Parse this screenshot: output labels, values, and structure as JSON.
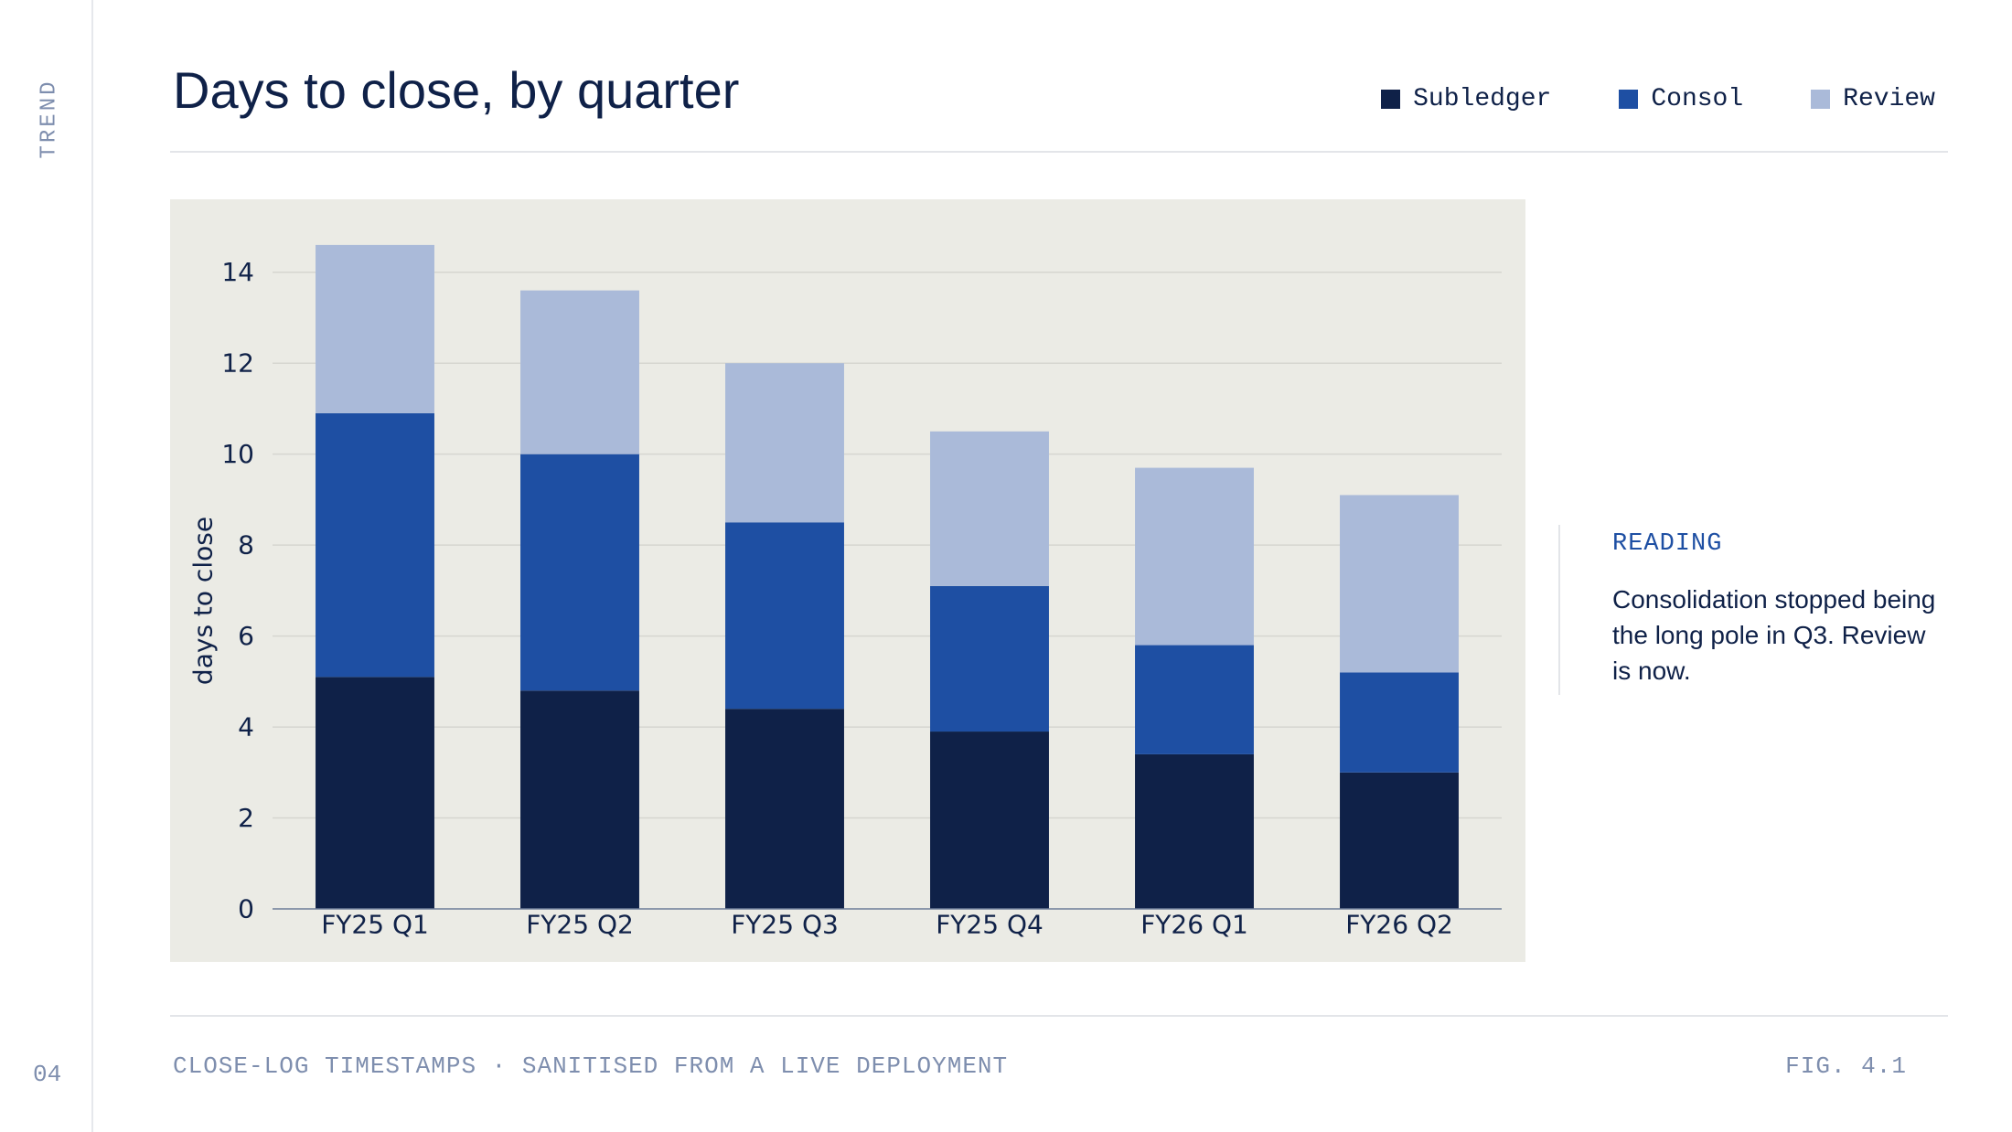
{
  "rail": {
    "section_label": "TREND",
    "page_number": "04"
  },
  "header": {
    "title": "Days to close, by quarter"
  },
  "legend": [
    {
      "label": "Subledger",
      "color": "#0f2148"
    },
    {
      "label": "Consol",
      "color": "#1e4fa3"
    },
    {
      "label": "Review",
      "color": "#aabad9"
    }
  ],
  "side_note": {
    "label": "READING",
    "text": "Consolidation stopped being the long pole in Q3. Review is now."
  },
  "footer": {
    "source": "CLOSE-LOG TIMESTAMPS · SANITISED FROM A LIVE DEPLOYMENT",
    "figure": "FIG. 4.1"
  },
  "chart_data": {
    "type": "bar",
    "stacked": true,
    "title": "Days to close, by quarter",
    "xlabel": "",
    "ylabel": "days to close",
    "ylim": [
      0,
      15
    ],
    "yticks": [
      0,
      2,
      4,
      6,
      8,
      10,
      12,
      14
    ],
    "grid": true,
    "legend_position": "top-right",
    "background": "#ebebe5",
    "categories": [
      "FY25 Q1",
      "FY25 Q2",
      "FY25 Q3",
      "FY25 Q4",
      "FY26 Q1",
      "FY26 Q2"
    ],
    "series": [
      {
        "name": "Subledger",
        "color": "#0f2148",
        "values": [
          5.1,
          4.8,
          4.4,
          3.9,
          3.4,
          3.0
        ]
      },
      {
        "name": "Consol",
        "color": "#1e4fa3",
        "values": [
          5.8,
          5.2,
          4.1,
          3.2,
          2.4,
          2.2
        ]
      },
      {
        "name": "Review",
        "color": "#aabad9",
        "values": [
          3.7,
          3.6,
          3.5,
          3.4,
          3.9,
          3.9
        ]
      }
    ]
  }
}
